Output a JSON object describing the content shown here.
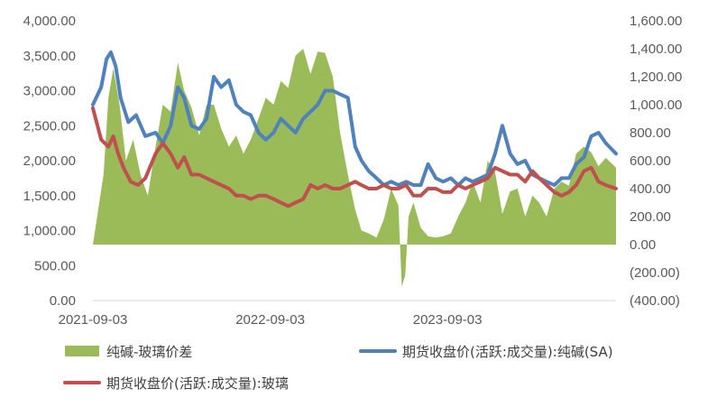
{
  "chart_data": {
    "type": "line",
    "colors": {
      "spread": "#9bbb59",
      "soda_ash": "#4f81bd",
      "glass": "#c0504d"
    },
    "x_tick_labels": [
      "2021-09-03",
      "2022-09-03",
      "2023-09-03"
    ],
    "x_tick_dates": [
      "2021-09-03",
      "2022-09-03",
      "2023-09-03"
    ],
    "x_range": [
      "2021-09-03",
      "2024-08-15"
    ],
    "y_left": {
      "range": [
        0,
        4000
      ],
      "tick_labels": [
        "0.00",
        "500.00",
        "1,000.00",
        "1,500.00",
        "2,000.00",
        "2,500.00",
        "3,000.00",
        "3,500.00",
        "4,000.00"
      ]
    },
    "y_right": {
      "range": [
        -400,
        1600
      ],
      "tick_labels": [
        "(400.00)",
        "(200.00)",
        "0.00",
        "200.00",
        "400.00",
        "600.00",
        "800.00",
        "1,000.00",
        "1,200.00",
        "1,400.00",
        "1,600.00"
      ]
    },
    "legend": [
      "纯碱-玻璃价差",
      "期货收盘价(活跃:成交量):纯碱(SA)",
      "期货收盘价(活跃:成交量):玻璃"
    ],
    "series": [
      {
        "name": "纯碱-玻璃价差",
        "type": "area",
        "axis": "right",
        "x": [
          "2021-09-03",
          "2021-09-25",
          "2021-10-05",
          "2021-10-15",
          "2021-10-28",
          "2021-11-10",
          "2021-11-25",
          "2021-12-10",
          "2021-12-25",
          "2022-01-10",
          "2022-01-25",
          "2022-02-10",
          "2022-02-25",
          "2022-03-10",
          "2022-03-25",
          "2022-04-10",
          "2022-04-25",
          "2022-05-10",
          "2022-05-25",
          "2022-06-10",
          "2022-06-25",
          "2022-07-10",
          "2022-07-25",
          "2022-08-10",
          "2022-08-25",
          "2022-09-10",
          "2022-09-25",
          "2022-10-10",
          "2022-10-25",
          "2022-11-10",
          "2022-11-25",
          "2022-12-10",
          "2022-12-25",
          "2023-01-10",
          "2023-01-25",
          "2023-02-10",
          "2023-02-25",
          "2023-03-10",
          "2023-03-25",
          "2023-04-10",
          "2023-04-25",
          "2023-05-10",
          "2023-05-25",
          "2023-06-01",
          "2023-06-08",
          "2023-06-15",
          "2023-06-25",
          "2023-07-10",
          "2023-07-25",
          "2023-08-10",
          "2023-08-25",
          "2023-09-10",
          "2023-09-25",
          "2023-10-10",
          "2023-10-25",
          "2023-11-10",
          "2023-11-25",
          "2023-12-10",
          "2023-12-25",
          "2024-01-10",
          "2024-01-25",
          "2024-02-10",
          "2024-02-25",
          "2024-03-10",
          "2024-03-25",
          "2024-04-10",
          "2024-04-25",
          "2024-05-10",
          "2024-05-25",
          "2024-06-10",
          "2024-06-25",
          "2024-07-10",
          "2024-07-25",
          "2024-08-15"
        ],
        "values": [
          0,
          500,
          1050,
          1260,
          1000,
          600,
          750,
          500,
          350,
          700,
          1000,
          950,
          1300,
          1100,
          980,
          780,
          1000,
          1000,
          830,
          700,
          780,
          650,
          750,
          900,
          1050,
          1000,
          1170,
          1120,
          1350,
          1400,
          1220,
          1380,
          1370,
          1200,
          800,
          500,
          250,
          100,
          80,
          50,
          180,
          400,
          280,
          -300,
          -220,
          200,
          300,
          120,
          60,
          50,
          60,
          80,
          200,
          300,
          450,
          300,
          600,
          520,
          220,
          380,
          400,
          200,
          350,
          300,
          200,
          400,
          450,
          420,
          650,
          700,
          660,
          560,
          620,
          550
        ]
      },
      {
        "name": "期货收盘价(活跃:成交量):纯碱(SA)",
        "type": "line",
        "axis": "left",
        "x": [
          "2021-09-03",
          "2021-09-20",
          "2021-10-01",
          "2021-10-10",
          "2021-10-20",
          "2021-10-30",
          "2021-11-15",
          "2021-12-01",
          "2021-12-20",
          "2022-01-10",
          "2022-01-25",
          "2022-02-10",
          "2022-02-25",
          "2022-03-10",
          "2022-03-25",
          "2022-04-10",
          "2022-04-25",
          "2022-05-10",
          "2022-05-25",
          "2022-06-10",
          "2022-06-25",
          "2022-07-10",
          "2022-07-25",
          "2022-08-10",
          "2022-08-25",
          "2022-09-10",
          "2022-09-25",
          "2022-10-10",
          "2022-10-25",
          "2022-11-10",
          "2022-11-25",
          "2022-12-10",
          "2022-12-25",
          "2023-01-10",
          "2023-01-25",
          "2023-02-10",
          "2023-02-25",
          "2023-03-10",
          "2023-03-25",
          "2023-04-10",
          "2023-04-25",
          "2023-05-10",
          "2023-05-25",
          "2023-06-10",
          "2023-06-25",
          "2023-07-10",
          "2023-07-25",
          "2023-08-10",
          "2023-08-25",
          "2023-09-10",
          "2023-09-25",
          "2023-10-10",
          "2023-10-25",
          "2023-11-10",
          "2023-11-25",
          "2023-12-10",
          "2023-12-25",
          "2024-01-10",
          "2024-01-25",
          "2024-02-10",
          "2024-02-25",
          "2024-03-10",
          "2024-03-25",
          "2024-04-10",
          "2024-04-25",
          "2024-05-10",
          "2024-05-25",
          "2024-06-10",
          "2024-06-25",
          "2024-07-10",
          "2024-07-25",
          "2024-08-15"
        ],
        "values": [
          2800,
          3050,
          3450,
          3550,
          3350,
          2900,
          2550,
          2650,
          2350,
          2400,
          2250,
          2500,
          3050,
          2900,
          2500,
          2450,
          2600,
          3200,
          3050,
          3150,
          2800,
          2700,
          2650,
          2400,
          2300,
          2400,
          2600,
          2500,
          2400,
          2600,
          2700,
          2800,
          3000,
          3000,
          2950,
          2900,
          2200,
          2000,
          1850,
          1750,
          1650,
          1700,
          1650,
          1700,
          1650,
          1650,
          1950,
          1750,
          1700,
          1750,
          1650,
          1750,
          1700,
          1750,
          1800,
          2100,
          2500,
          2100,
          1950,
          2000,
          1800,
          1750,
          1700,
          1650,
          1750,
          1750,
          1950,
          2050,
          2350,
          2400,
          2250,
          2100
        ]
      },
      {
        "name": "期货收盘价(活跃:成交量):玻璃",
        "type": "line",
        "axis": "left",
        "x": [
          "2021-09-03",
          "2021-09-20",
          "2021-10-05",
          "2021-10-15",
          "2021-10-25",
          "2021-11-05",
          "2021-11-20",
          "2021-12-05",
          "2021-12-20",
          "2022-01-10",
          "2022-01-25",
          "2022-02-10",
          "2022-02-25",
          "2022-03-10",
          "2022-03-25",
          "2022-04-10",
          "2022-04-25",
          "2022-05-10",
          "2022-05-25",
          "2022-06-10",
          "2022-06-25",
          "2022-07-10",
          "2022-07-25",
          "2022-08-10",
          "2022-08-25",
          "2022-09-10",
          "2022-09-25",
          "2022-10-10",
          "2022-10-25",
          "2022-11-10",
          "2022-11-25",
          "2022-12-10",
          "2022-12-25",
          "2023-01-10",
          "2023-01-25",
          "2023-02-10",
          "2023-02-25",
          "2023-03-10",
          "2023-03-25",
          "2023-04-10",
          "2023-04-25",
          "2023-05-10",
          "2023-05-25",
          "2023-06-10",
          "2023-06-25",
          "2023-07-10",
          "2023-07-25",
          "2023-08-10",
          "2023-08-25",
          "2023-09-10",
          "2023-09-25",
          "2023-10-10",
          "2023-10-25",
          "2023-11-10",
          "2023-11-25",
          "2023-12-10",
          "2023-12-25",
          "2024-01-10",
          "2024-01-25",
          "2024-02-10",
          "2024-02-25",
          "2024-03-10",
          "2024-03-25",
          "2024-04-10",
          "2024-04-25",
          "2024-05-10",
          "2024-05-25",
          "2024-06-10",
          "2024-06-25",
          "2024-07-10",
          "2024-07-25",
          "2024-08-15"
        ],
        "values": [
          2750,
          2300,
          2200,
          2350,
          2100,
          1900,
          1700,
          1650,
          1750,
          2100,
          2250,
          2100,
          1900,
          2050,
          1800,
          1800,
          1750,
          1700,
          1650,
          1600,
          1500,
          1500,
          1450,
          1500,
          1500,
          1450,
          1400,
          1350,
          1400,
          1450,
          1650,
          1600,
          1650,
          1600,
          1600,
          1650,
          1700,
          1650,
          1600,
          1600,
          1650,
          1600,
          1600,
          1650,
          1500,
          1500,
          1600,
          1600,
          1550,
          1550,
          1650,
          1600,
          1650,
          1700,
          1750,
          1900,
          1850,
          1800,
          1800,
          1700,
          1850,
          1750,
          1650,
          1550,
          1500,
          1550,
          1650,
          1850,
          1900,
          1700,
          1650,
          1600
        ]
      }
    ]
  }
}
